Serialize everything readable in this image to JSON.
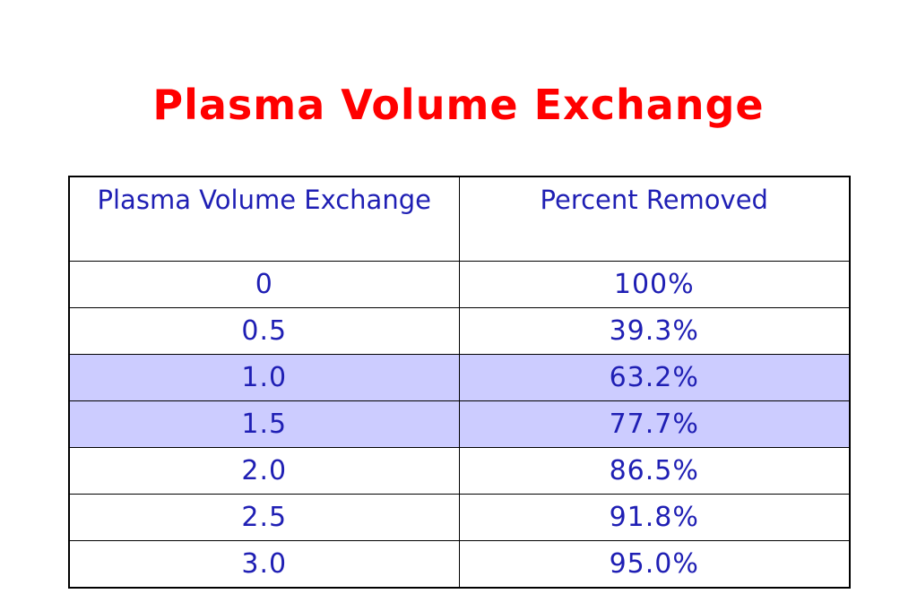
{
  "slide": {
    "title": "Plasma Volume Exchange"
  },
  "table": {
    "headers": [
      "Plasma Volume Exchange",
      "Percent Removed"
    ],
    "rows": [
      {
        "exchange": "0",
        "percent": "100%",
        "highlight": false
      },
      {
        "exchange": "0.5",
        "percent": "39.3%",
        "highlight": false
      },
      {
        "exchange": "1.0",
        "percent": "63.2%",
        "highlight": true
      },
      {
        "exchange": "1.5",
        "percent": "77.7%",
        "highlight": true
      },
      {
        "exchange": "2.0",
        "percent": "86.5%",
        "highlight": false
      },
      {
        "exchange": "2.5",
        "percent": "91.8%",
        "highlight": false
      },
      {
        "exchange": "3.0",
        "percent": "95.0%",
        "highlight": false
      }
    ]
  },
  "colors": {
    "title": "#ff0000",
    "cell_text": "#1f1fb4",
    "highlight_fill": "#ccccff",
    "border": "#000000"
  }
}
